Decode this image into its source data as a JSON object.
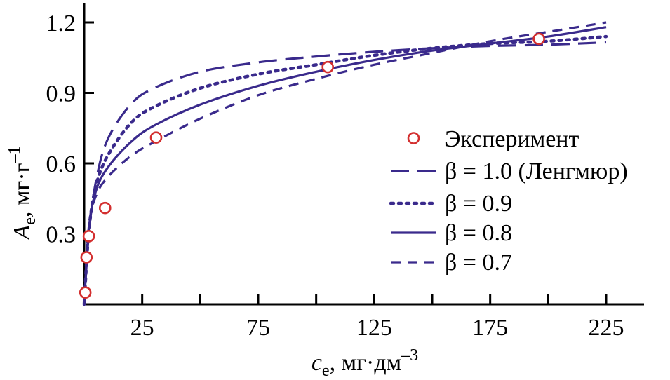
{
  "chart_data": {
    "type": "line",
    "xlabel": {
      "symbol": "c",
      "subscript": "e",
      "unit": ", мг·дм",
      "sup": "–3"
    },
    "ylabel": {
      "symbol": "A",
      "subscript": "e",
      "unit": ", мг·г",
      "sup": "–1"
    },
    "xlim": [
      0,
      242
    ],
    "ylim": [
      0,
      1.3
    ],
    "xticks": [
      25,
      75,
      125,
      175,
      225
    ],
    "xtick_labels": [
      "25",
      "75",
      "125",
      "175",
      "225"
    ],
    "xminor": [
      50,
      100,
      150,
      200
    ],
    "yticks": [
      0.3,
      0.6,
      0.9,
      1.2
    ],
    "ytick_labels": [
      "0.3",
      "0.6",
      "0.9",
      "1.2"
    ],
    "scatter": {
      "name": "Эксперимент",
      "color": "#d32f2f",
      "x": [
        0.5,
        1.0,
        2.0,
        9.0,
        31.0,
        105.0,
        196.0
      ],
      "y": [
        0.05,
        0.2,
        0.29,
        0.41,
        0.71,
        1.01,
        1.13
      ]
    },
    "series": [
      {
        "name": "β = 1.0 (Ленгмюр)",
        "style": "longdash",
        "color": "#3a2a8c",
        "x": [
          0,
          2,
          5,
          10,
          20,
          30,
          50,
          75,
          100,
          125,
          150,
          175,
          200,
          225
        ],
        "y": [
          0,
          0.3,
          0.52,
          0.7,
          0.85,
          0.92,
          0.99,
          1.03,
          1.055,
          1.075,
          1.09,
          1.1,
          1.105,
          1.115
        ]
      },
      {
        "name": "β = 0.9",
        "style": "dotted",
        "color": "#3a2a8c",
        "x": [
          0,
          2,
          5,
          10,
          20,
          30,
          50,
          75,
          100,
          125,
          150,
          175,
          200,
          225
        ],
        "y": [
          0,
          0.31,
          0.5,
          0.63,
          0.77,
          0.84,
          0.92,
          0.98,
          1.02,
          1.06,
          1.09,
          1.11,
          1.12,
          1.14
        ]
      },
      {
        "name": "β = 0.8",
        "style": "solid",
        "color": "#3a2a8c",
        "x": [
          0,
          2,
          5,
          10,
          20,
          30,
          50,
          75,
          100,
          125,
          150,
          175,
          200,
          225
        ],
        "y": [
          0,
          0.32,
          0.48,
          0.58,
          0.69,
          0.76,
          0.85,
          0.93,
          0.99,
          1.04,
          1.08,
          1.11,
          1.14,
          1.18
        ]
      },
      {
        "name": "β = 0.7",
        "style": "dashed",
        "color": "#3a2a8c",
        "x": [
          0,
          2,
          5,
          10,
          20,
          30,
          50,
          75,
          100,
          125,
          150,
          175,
          200,
          225
        ],
        "y": [
          0,
          0.33,
          0.46,
          0.54,
          0.63,
          0.69,
          0.79,
          0.89,
          0.96,
          1.02,
          1.07,
          1.12,
          1.16,
          1.2
        ]
      }
    ],
    "legend_position": "right"
  }
}
